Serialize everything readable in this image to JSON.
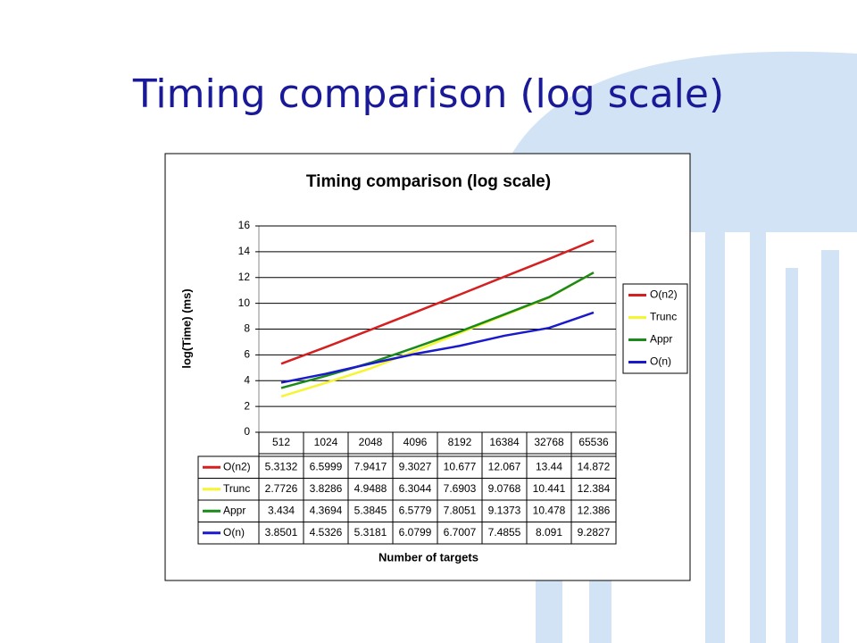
{
  "slide_title": "Timing comparison (log scale)",
  "chart_data": {
    "type": "line",
    "title": "Timing comparison (log scale)",
    "x_label": "Number of targets",
    "y_label": "log(Time) (ms)",
    "categories": [
      "512",
      "1024",
      "2048",
      "4096",
      "8192",
      "16384",
      "32768",
      "65536"
    ],
    "series": [
      {
        "name": "O(n2)",
        "color": "#d42020",
        "values": [
          5.3132,
          6.5999,
          7.9417,
          9.3027,
          10.677,
          12.067,
          13.44,
          14.872
        ]
      },
      {
        "name": "Trunc",
        "color": "#f5f530",
        "values": [
          2.7726,
          3.8286,
          4.9488,
          6.3044,
          7.6903,
          9.0768,
          10.441,
          12.384
        ]
      },
      {
        "name": "Appr",
        "color": "#1a8a1a",
        "values": [
          3.434,
          4.3694,
          5.3845,
          6.5779,
          7.8051,
          9.1373,
          10.478,
          12.386
        ]
      },
      {
        "name": "O(n)",
        "color": "#1a1acc",
        "values": [
          3.8501,
          4.5326,
          5.3181,
          6.0799,
          6.7007,
          7.4855,
          8.091,
          9.2827
        ]
      }
    ],
    "ylim": [
      0,
      16
    ],
    "yticks": [
      0,
      2,
      4,
      6,
      8,
      10,
      12,
      14,
      16
    ],
    "grid": true,
    "legend": "right"
  }
}
